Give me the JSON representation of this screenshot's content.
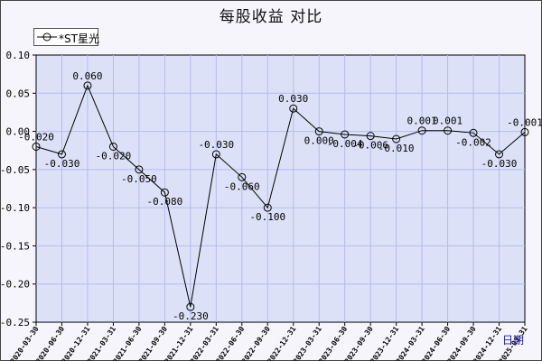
{
  "chart_data": {
    "type": "line",
    "title": "每股收益 对比",
    "xlabel": "日期",
    "ylabel": "",
    "ylim": [
      -0.25,
      0.1
    ],
    "yticks": [
      "0.10",
      "0.05",
      "0.00",
      "-0.05",
      "-0.10",
      "-0.15",
      "-0.20",
      "-0.25"
    ],
    "grid": true,
    "legend_position": "top-left",
    "series": [
      {
        "name": "*ST星光",
        "color": "#000000",
        "x": [
          "2020-03-30",
          "2020-06-30",
          "2020-12-31",
          "2021-03-31",
          "2021-06-30",
          "2021-09-30",
          "2021-12-31",
          "2022-03-31",
          "2022-06-30",
          "2022-09-30",
          "2022-12-31",
          "2023-03-31",
          "2023-06-30",
          "2023-09-30",
          "2023-12-31",
          "2024-03-31",
          "2024-06-30",
          "2024-09-30",
          "2024-12-31",
          "2025-03-31"
        ],
        "values": [
          -0.02,
          -0.03,
          0.06,
          -0.02,
          -0.05,
          -0.08,
          -0.23,
          -0.03,
          -0.06,
          -0.1,
          0.03,
          0.0,
          -0.004,
          -0.006,
          -0.01,
          0.001,
          0.001,
          -0.002,
          -0.03,
          -0.001
        ],
        "labels": [
          "-0.020",
          "-0.030",
          "0.060",
          "-0.020",
          "-0.050",
          "-0.080",
          "-0.230",
          "-0.030",
          "-0.060",
          "-0.100",
          "0.030",
          "0.000",
          "-0.004",
          "-0.006",
          "-0.010",
          "0.001",
          "0.001",
          "-0.002",
          "-0.030",
          "-0.001"
        ]
      }
    ]
  }
}
